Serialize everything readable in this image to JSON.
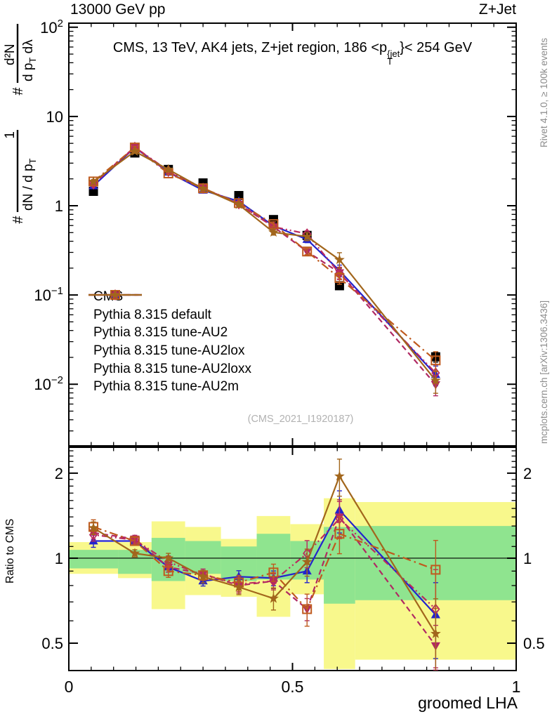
{
  "header": {
    "left": "13000 GeV pp",
    "right": "Z+Jet"
  },
  "panel_title": {
    "prefix": "CMS, 13 TeV, AK4 jets, Z+jet region, 186 <p",
    "sup": "{jet",
    "sub": "T",
    "suffix": "}< 254 GeV"
  },
  "right_margin": {
    "top": "Rivet 4.1.0, ≥ 100k events",
    "bottom": "mcplots.cern.ch [arXiv:1306.3436]"
  },
  "watermark": "(CMS_2021_I1920187)",
  "xaxis": {
    "title": "groomed LHA",
    "lim": [
      0,
      1
    ],
    "minor_step": 0.05,
    "ticks": [
      {
        "label": "0",
        "v": 0
      },
      {
        "label": "0.5",
        "v": 0.5
      },
      {
        "label": "1",
        "v": 1
      }
    ]
  },
  "yaxis_main": {
    "hash": "#",
    "frac1": {
      "num": "1",
      "den_main": "dN / d p",
      "den_sub": "T"
    },
    "frac2": {
      "num": "d²N",
      "den_main": "d p",
      "den_sub": "T",
      "den_rest": " dλ"
    },
    "ticks": [
      {
        "label": "10",
        "exp": "2",
        "v": 100
      },
      {
        "label": "10",
        "exp": "",
        "v": 10
      },
      {
        "label": "1",
        "exp": "",
        "v": 1
      },
      {
        "label": "10",
        "exp": "−1",
        "v": 0.1
      },
      {
        "label": "10",
        "exp": "−2",
        "v": 0.01
      }
    ]
  },
  "yaxis_ratio": {
    "label": "Ratio to CMS",
    "ticks": [
      {
        "label": "2",
        "v": 2
      },
      {
        "label": "1",
        "v": 1
      },
      {
        "label": "0.5",
        "v": 0.5
      }
    ]
  },
  "chart_data": {
    "type": "line",
    "title": "CMS, 13 TeV, AK4 jets, Z+jet region, 186 < pT{jet} < 254 GeV",
    "xlabel": "groomed LHA",
    "ylabel": "# 1/(dN/dpT) # d²N/(dpT dλ)",
    "axes": {
      "xlim": [
        0,
        1
      ],
      "main_ylim": [
        0.00204,
        111
      ],
      "main_yscale": "log",
      "ratio_ylim": [
        0.4,
        2.47
      ],
      "ratio_yscale": "log",
      "ratio_label": "Ratio to CMS"
    },
    "x": [
      0.055,
      0.1475,
      0.2225,
      0.3,
      0.38,
      0.4575,
      0.5325,
      0.605,
      0.82
    ],
    "bin_edges": [
      0,
      0.11,
      0.185,
      0.26,
      0.34,
      0.42,
      0.495,
      0.57,
      0.64,
      1.0
    ],
    "reference": {
      "name": "CMS",
      "color": "#000000",
      "marker": "square-filled",
      "line": "none",
      "values": [
        1.45,
        3.9,
        2.55,
        1.8,
        1.3,
        0.7,
        0.465,
        0.127,
        0.0203
      ],
      "err_rel_main": [
        0.04,
        0.025,
        0.025,
        0.03,
        0.035,
        0.045,
        0.05,
        0.09,
        0.13
      ]
    },
    "series": [
      {
        "name": "Pythia 8.315 default",
        "color": "#2323cd",
        "line": "solid",
        "marker": "triangle-up-filled",
        "values": [
          1.67,
          4.49,
          2.37,
          1.49,
          1.12,
          0.595,
          0.419,
          0.188,
          0.0128
        ],
        "ratio": [
          1.15,
          1.15,
          0.93,
          0.83,
          0.86,
          0.85,
          0.9,
          1.48,
          0.63
        ],
        "err_rel_main": [
          0.05,
          0.03,
          0.03,
          0.03,
          0.04,
          0.06,
          0.08,
          0.15,
          0.25
        ],
        "err_rel_ratio": [
          0.05,
          0.03,
          0.04,
          0.04,
          0.05,
          0.06,
          0.09,
          0.17,
          0.3
        ]
      },
      {
        "name": "Pythia 8.315 tune-AU2",
        "color": "#b02963",
        "line": "dash",
        "marker": "triangle-down-filled",
        "values": [
          1.78,
          4.56,
          2.37,
          1.58,
          1.04,
          0.581,
          0.307,
          0.178,
          0.0099
        ],
        "ratio": [
          1.23,
          1.17,
          0.93,
          0.88,
          0.8,
          0.83,
          0.66,
          1.4,
          0.49
        ],
        "err_rel_main": [
          0.05,
          0.03,
          0.03,
          0.03,
          0.04,
          0.06,
          0.08,
          0.15,
          0.25
        ],
        "err_rel_ratio": [
          0.05,
          0.03,
          0.04,
          0.04,
          0.06,
          0.06,
          0.09,
          0.15,
          0.18
        ]
      },
      {
        "name": "Pythia 8.315 tune-AU2lox",
        "color": "#bb2a5e",
        "line": "dashdot",
        "marker": "diamond-open",
        "values": [
          1.75,
          4.52,
          2.47,
          1.57,
          1.05,
          0.581,
          0.484,
          0.175,
          0.0134
        ],
        "ratio": [
          1.21,
          1.16,
          0.97,
          0.87,
          0.81,
          0.83,
          1.04,
          1.38,
          0.66
        ],
        "err_rel_main": [
          0.05,
          0.03,
          0.03,
          0.03,
          0.04,
          0.06,
          0.08,
          0.15,
          0.25
        ],
        "err_rel_ratio": [
          0.05,
          0.03,
          0.05,
          0.04,
          0.06,
          0.07,
          0.11,
          0.15,
          0.38
        ]
      },
      {
        "name": "Pythia 8.315 tune-AU2loxx",
        "color": "#bf5a1e",
        "line": "dashdot-long",
        "marker": "square-open",
        "values": [
          1.87,
          4.49,
          2.3,
          1.57,
          1.07,
          0.623,
          0.307,
          0.155,
          0.0185
        ],
        "ratio": [
          1.29,
          1.15,
          0.9,
          0.87,
          0.82,
          0.89,
          0.66,
          1.22,
          0.91
        ],
        "err_rel_main": [
          0.05,
          0.03,
          0.03,
          0.03,
          0.04,
          0.06,
          0.08,
          0.15,
          0.25
        ],
        "err_rel_ratio": [
          0.06,
          0.03,
          0.05,
          0.04,
          0.06,
          0.07,
          0.13,
          0.15,
          0.27
        ]
      },
      {
        "name": "Pythia 8.315 tune-AU2m",
        "color": "#a2661c",
        "line": "solid",
        "marker": "star-filled",
        "values": [
          1.86,
          4.06,
          2.55,
          1.55,
          1.03,
          0.504,
          0.451,
          0.248,
          0.011
        ],
        "ratio": [
          1.28,
          1.04,
          1.0,
          0.86,
          0.79,
          0.72,
          0.97,
          1.95,
          0.54
        ],
        "err_rel_main": [
          0.04,
          0.03,
          0.03,
          0.04,
          0.05,
          0.07,
          0.1,
          0.2,
          0.28
        ],
        "err_rel_ratio": [
          0.05,
          0.03,
          0.04,
          0.05,
          0.06,
          0.09,
          0.11,
          0.15,
          0.33
        ]
      }
    ],
    "bands": {
      "yellow": {
        "color": "#f8f88c",
        "ranges": [
          [
            0.88,
            1.14
          ],
          [
            0.85,
            1.14
          ],
          [
            0.66,
            1.35
          ],
          [
            0.74,
            1.29
          ],
          [
            0.73,
            1.17
          ],
          [
            0.62,
            1.41
          ],
          [
            0.745,
            1.32
          ],
          [
            0.405,
            1.63
          ],
          [
            0.437,
            1.58
          ]
        ]
      },
      "green": {
        "color": "#8fe48f",
        "ranges": [
          [
            0.92,
            1.07
          ],
          [
            0.88,
            1.07
          ],
          [
            0.83,
            1.18
          ],
          [
            0.88,
            1.15
          ],
          [
            0.83,
            1.1
          ],
          [
            0.84,
            1.22
          ],
          [
            0.84,
            1.15
          ],
          [
            0.69,
            1.29
          ],
          [
            0.71,
            1.3
          ]
        ]
      }
    }
  }
}
